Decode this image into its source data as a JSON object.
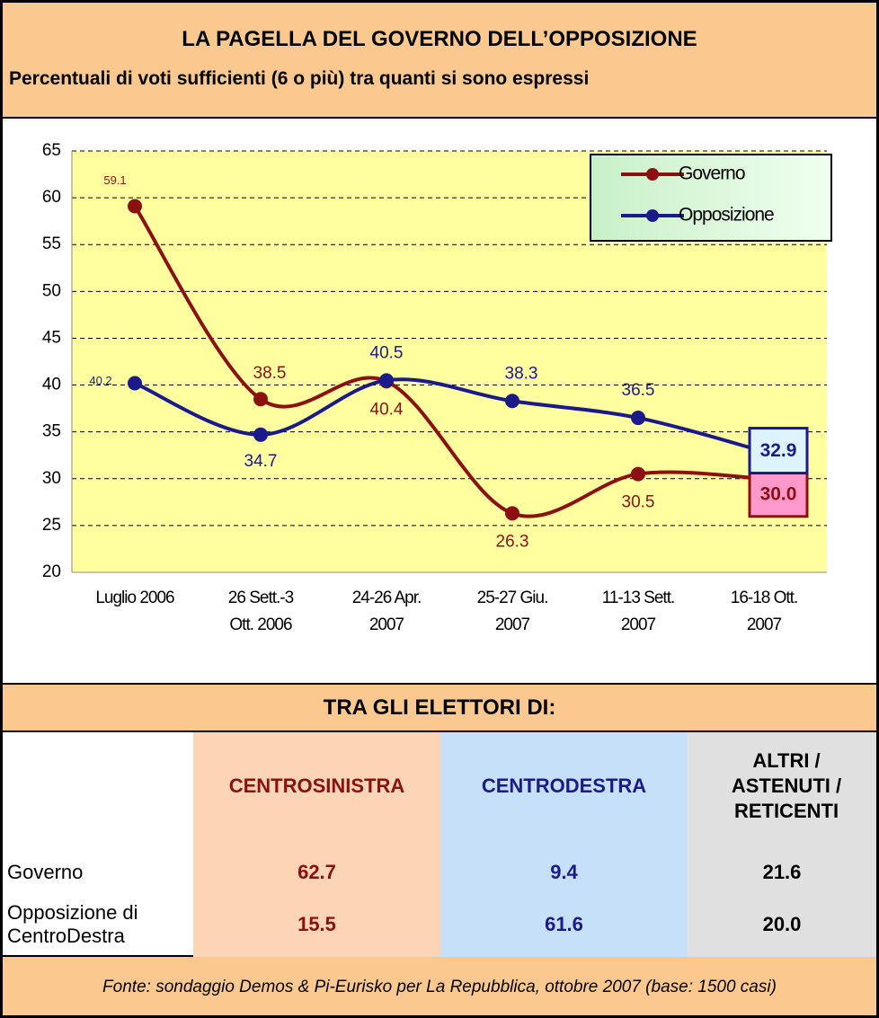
{
  "header": {
    "title": "LA PAGELLA DEL GOVERNO DELL’OPPOSIZIONE",
    "subtitle": "Percentuali di voti sufficienti (6 o più) tra quanti si sono espressi"
  },
  "chart_data": {
    "type": "line",
    "categories": [
      "Luglio 2006",
      "26 Sett.-3\nOtt. 2006",
      "24-26 Apr.\n2007",
      "25-27 Giu.\n2007",
      "11-13 Sett.\n2007",
      "16-18 Ott.\n2007"
    ],
    "series": [
      {
        "name": "Governo",
        "color": "#8b1010",
        "values": [
          59.1,
          38.5,
          40.4,
          26.3,
          30.5,
          30.0
        ],
        "value_labels": [
          "59.1",
          "38.5",
          "40.4",
          "26.3",
          "30.5",
          "30.0"
        ]
      },
      {
        "name": "Opposizione",
        "color": "#1a1a8a",
        "values": [
          40.2,
          34.7,
          40.5,
          38.3,
          36.5,
          32.9
        ],
        "value_labels": [
          "40.2",
          "34.7",
          "40.5",
          "38.3",
          "36.5",
          "32.9"
        ]
      }
    ],
    "ylim": [
      20,
      65
    ],
    "yticks": [
      20,
      25,
      30,
      35,
      40,
      45,
      50,
      55,
      60,
      65
    ],
    "grid": true,
    "legend": "top-right"
  },
  "table": {
    "title": "TRA GLI ELETTORI DI:",
    "columns": [
      "CENTROSINISTRA",
      "CENTRODESTRA",
      "ALTRI / ASTENUTI / RETICENTI"
    ],
    "rows": [
      {
        "label": "Governo",
        "values": [
          "62.7",
          "9.4",
          "21.6"
        ]
      },
      {
        "label": "Opposizione di CentroDestra",
        "values": [
          "15.5",
          "61.6",
          "20.0"
        ]
      }
    ]
  },
  "footer": {
    "source": "Fonte: sondaggio Demos & Pi-Eurisko per La Repubblica, ottobre 2007 (base: 1500 casi)"
  }
}
